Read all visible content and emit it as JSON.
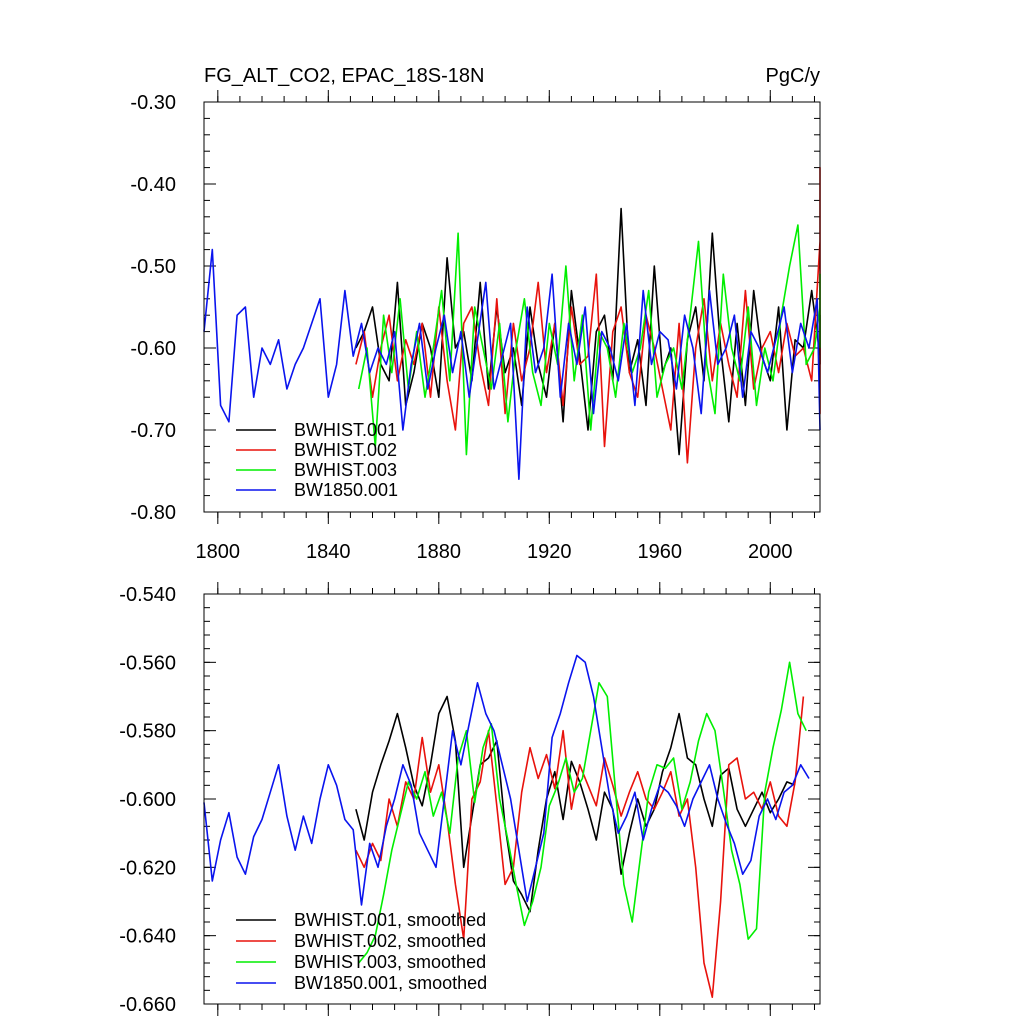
{
  "chart_data": [
    {
      "type": "line",
      "title_left": "FG_ALT_CO2, EPAC_18S-18N",
      "title_right": "PgC/y",
      "xlim": [
        1795,
        2018
      ],
      "ylim": [
        -0.8,
        -0.3
      ],
      "x_ticks": [
        1800,
        1840,
        1880,
        1920,
        1960,
        2000
      ],
      "x_tick_labels": [
        "1800",
        "1840",
        "1880",
        "1920",
        "1960",
        "2000"
      ],
      "y_ticks": [
        -0.3,
        -0.4,
        -0.5,
        -0.6,
        -0.7,
        -0.8
      ],
      "y_tick_labels": [
        "-0.30",
        "-0.40",
        "-0.50",
        "-0.60",
        "-0.70",
        "-0.80"
      ],
      "grid": false,
      "legend": "bottom-left",
      "series": [
        {
          "name": "BWHIST.001",
          "color": "#000000",
          "x_start": 1850,
          "x_step": 3,
          "values": [
            -0.6,
            -0.58,
            -0.55,
            -0.62,
            -0.64,
            -0.52,
            -0.67,
            -0.63,
            -0.57,
            -0.6,
            -0.66,
            -0.49,
            -0.6,
            -0.58,
            -0.64,
            -0.52,
            -0.65,
            -0.55,
            -0.63,
            -0.6,
            -0.67,
            -0.55,
            -0.62,
            -0.66,
            -0.57,
            -0.69,
            -0.53,
            -0.61,
            -0.7,
            -0.58,
            -0.56,
            -0.64,
            -0.43,
            -0.63,
            -0.59,
            -0.67,
            -0.5,
            -0.63,
            -0.6,
            -0.73,
            -0.59,
            -0.55,
            -0.64,
            -0.46,
            -0.6,
            -0.69,
            -0.57,
            -0.67,
            -0.53,
            -0.61,
            -0.64,
            -0.55,
            -0.7,
            -0.59,
            -0.6,
            -0.53,
            -0.61,
            -0.56,
            -0.62
          ]
        },
        {
          "name": "BWHIST.002",
          "color": "#e8120c",
          "x_start": 1850,
          "x_step": 3,
          "values": [
            -0.62,
            -0.58,
            -0.66,
            -0.6,
            -0.56,
            -0.64,
            -0.59,
            -0.62,
            -0.57,
            -0.66,
            -0.55,
            -0.64,
            -0.7,
            -0.57,
            -0.55,
            -0.62,
            -0.67,
            -0.54,
            -0.68,
            -0.57,
            -0.64,
            -0.6,
            -0.52,
            -0.63,
            -0.57,
            -0.67,
            -0.55,
            -0.62,
            -0.61,
            -0.51,
            -0.72,
            -0.58,
            -0.55,
            -0.63,
            -0.66,
            -0.56,
            -0.6,
            -0.65,
            -0.7,
            -0.57,
            -0.74,
            -0.6,
            -0.54,
            -0.64,
            -0.57,
            -0.62,
            -0.66,
            -0.53,
            -0.65,
            -0.6,
            -0.58,
            -0.63,
            -0.57,
            -0.61,
            -0.6,
            -0.64,
            -0.47,
            -0.68,
            -0.38,
            -0.62
          ]
        },
        {
          "name": "BWHIST.003",
          "color": "#00ee00",
          "x_start": 1851,
          "x_step": 3,
          "values": [
            -0.65,
            -0.6,
            -0.72,
            -0.56,
            -0.63,
            -0.54,
            -0.65,
            -0.58,
            -0.66,
            -0.6,
            -0.53,
            -0.64,
            -0.46,
            -0.73,
            -0.55,
            -0.6,
            -0.65,
            -0.57,
            -0.69,
            -0.6,
            -0.54,
            -0.63,
            -0.67,
            -0.57,
            -0.62,
            -0.5,
            -0.64,
            -0.56,
            -0.7,
            -0.58,
            -0.6,
            -0.66,
            -0.57,
            -0.63,
            -0.6,
            -0.53,
            -0.66,
            -0.62,
            -0.6,
            -0.65,
            -0.56,
            -0.47,
            -0.62,
            -0.68,
            -0.51,
            -0.6,
            -0.64,
            -0.55,
            -0.67,
            -0.6,
            -0.64,
            -0.56,
            -0.5,
            -0.45,
            -0.62,
            -0.6,
            -0.55,
            -0.51,
            -0.6
          ]
        },
        {
          "name": "BW1850.001",
          "color": "#0a14ee",
          "x_start": 1795,
          "x_step": 3,
          "values": [
            -0.58,
            -0.48,
            -0.67,
            -0.69,
            -0.56,
            -0.55,
            -0.66,
            -0.6,
            -0.62,
            -0.59,
            -0.65,
            -0.62,
            -0.6,
            -0.57,
            -0.54,
            -0.66,
            -0.62,
            -0.53,
            -0.61,
            -0.57,
            -0.63,
            -0.6,
            -0.62,
            -0.58,
            -0.7,
            -0.62,
            -0.57,
            -0.65,
            -0.6,
            -0.56,
            -0.63,
            -0.58,
            -0.66,
            -0.59,
            -0.52,
            -0.65,
            -0.61,
            -0.57,
            -0.76,
            -0.55,
            -0.63,
            -0.6,
            -0.51,
            -0.66,
            -0.57,
            -0.62,
            -0.55,
            -0.68,
            -0.58,
            -0.6,
            -0.64,
            -0.57,
            -0.67,
            -0.53,
            -0.62,
            -0.58,
            -0.59,
            -0.65,
            -0.56,
            -0.6,
            -0.68,
            -0.53,
            -0.62,
            -0.6,
            -0.56,
            -0.66,
            -0.58,
            -0.6,
            -0.63,
            -0.59,
            -0.55,
            -0.63,
            -0.57,
            -0.6,
            -0.54,
            -0.7
          ]
        }
      ]
    },
    {
      "type": "line",
      "xlim": [
        1795,
        2018
      ],
      "ylim": [
        -0.66,
        -0.54
      ],
      "x_ticks": [
        1800,
        1840,
        1880,
        1920,
        1960,
        2000
      ],
      "y_ticks": [
        -0.54,
        -0.56,
        -0.58,
        -0.6,
        -0.62,
        -0.64,
        -0.66
      ],
      "y_tick_labels": [
        "-0.540",
        "-0.560",
        "-0.580",
        "-0.600",
        "-0.620",
        "-0.640",
        "-0.660"
      ],
      "grid": false,
      "legend": "bottom-left",
      "series": [
        {
          "name": "BWHIST.001, smoothed",
          "color": "#000000",
          "x": [
            1850,
            1853,
            1856,
            1859,
            1862,
            1865,
            1868,
            1871,
            1874,
            1877,
            1880,
            1883,
            1886,
            1889,
            1892,
            1895,
            1898,
            1901,
            1904,
            1907,
            1910,
            1913,
            1916,
            1919,
            1922,
            1925,
            1928,
            1931,
            1934,
            1937,
            1940,
            1943,
            1946,
            1949,
            1952,
            1955,
            1958,
            1961,
            1964,
            1967,
            1970,
            1973,
            1976,
            1979,
            1982,
            1985,
            1988,
            1991,
            1994,
            1997,
            2000,
            2003,
            2006,
            2009
          ],
          "values": [
            -0.603,
            -0.612,
            -0.598,
            -0.59,
            -0.583,
            -0.575,
            -0.585,
            -0.596,
            -0.602,
            -0.59,
            -0.575,
            -0.57,
            -0.583,
            -0.62,
            -0.605,
            -0.59,
            -0.588,
            -0.583,
            -0.608,
            -0.624,
            -0.628,
            -0.633,
            -0.615,
            -0.6,
            -0.592,
            -0.606,
            -0.589,
            -0.595,
            -0.603,
            -0.612,
            -0.598,
            -0.603,
            -0.622,
            -0.61,
            -0.6,
            -0.608,
            -0.603,
            -0.592,
            -0.585,
            -0.575,
            -0.588,
            -0.59,
            -0.6,
            -0.608,
            -0.593,
            -0.591,
            -0.603,
            -0.608,
            -0.603,
            -0.598,
            -0.604,
            -0.6,
            -0.595,
            -0.596
          ]
        },
        {
          "name": "BWHIST.002, smoothed",
          "color": "#e8120c",
          "x": [
            1850,
            1853,
            1856,
            1859,
            1862,
            1865,
            1868,
            1871,
            1874,
            1877,
            1880,
            1883,
            1886,
            1889,
            1892,
            1895,
            1898,
            1901,
            1904,
            1907,
            1910,
            1913,
            1916,
            1919,
            1922,
            1925,
            1928,
            1931,
            1934,
            1937,
            1940,
            1943,
            1946,
            1949,
            1952,
            1955,
            1958,
            1961,
            1964,
            1967,
            1970,
            1973,
            1976,
            1979,
            1982,
            1985,
            1988,
            1991,
            1994,
            1997,
            2000,
            2003,
            2006,
            2009,
            2012
          ],
          "values": [
            -0.615,
            -0.62,
            -0.613,
            -0.618,
            -0.6,
            -0.608,
            -0.595,
            -0.6,
            -0.582,
            -0.598,
            -0.59,
            -0.606,
            -0.625,
            -0.641,
            -0.6,
            -0.595,
            -0.58,
            -0.602,
            -0.625,
            -0.62,
            -0.598,
            -0.585,
            -0.594,
            -0.587,
            -0.597,
            -0.58,
            -0.603,
            -0.59,
            -0.596,
            -0.602,
            -0.588,
            -0.596,
            -0.605,
            -0.598,
            -0.592,
            -0.6,
            -0.603,
            -0.598,
            -0.592,
            -0.605,
            -0.6,
            -0.62,
            -0.648,
            -0.658,
            -0.63,
            -0.59,
            -0.588,
            -0.6,
            -0.598,
            -0.603,
            -0.595,
            -0.605,
            -0.608,
            -0.595,
            -0.57
          ]
        },
        {
          "name": "BWHIST.003, smoothed",
          "color": "#00ee00",
          "x": [
            1851,
            1854,
            1857,
            1860,
            1863,
            1866,
            1869,
            1872,
            1875,
            1878,
            1881,
            1884,
            1887,
            1890,
            1893,
            1896,
            1899,
            1902,
            1905,
            1908,
            1911,
            1914,
            1917,
            1920,
            1923,
            1926,
            1929,
            1932,
            1935,
            1938,
            1941,
            1944,
            1947,
            1950,
            1953,
            1956,
            1959,
            1962,
            1965,
            1968,
            1971,
            1974,
            1977,
            1980,
            1983,
            1986,
            1989,
            1992,
            1995,
            1998,
            2001,
            2004,
            2007,
            2010,
            2013
          ],
          "values": [
            -0.648,
            -0.645,
            -0.64,
            -0.628,
            -0.615,
            -0.605,
            -0.595,
            -0.6,
            -0.592,
            -0.605,
            -0.598,
            -0.61,
            -0.588,
            -0.58,
            -0.601,
            -0.585,
            -0.578,
            -0.6,
            -0.612,
            -0.625,
            -0.637,
            -0.63,
            -0.62,
            -0.602,
            -0.596,
            -0.588,
            -0.598,
            -0.594,
            -0.58,
            -0.566,
            -0.57,
            -0.598,
            -0.625,
            -0.636,
            -0.617,
            -0.598,
            -0.59,
            -0.591,
            -0.588,
            -0.603,
            -0.595,
            -0.583,
            -0.575,
            -0.58,
            -0.597,
            -0.615,
            -0.625,
            -0.641,
            -0.638,
            -0.598,
            -0.585,
            -0.574,
            -0.56,
            -0.575,
            -0.58
          ]
        },
        {
          "name": "BW1850.001, smoothed",
          "color": "#0a14ee",
          "x": [
            1795,
            1798,
            1801,
            1804,
            1807,
            1810,
            1813,
            1816,
            1819,
            1822,
            1825,
            1828,
            1831,
            1834,
            1837,
            1840,
            1843,
            1846,
            1849,
            1852,
            1855,
            1858,
            1861,
            1864,
            1867,
            1870,
            1873,
            1876,
            1879,
            1882,
            1885,
            1888,
            1891,
            1894,
            1897,
            1900,
            1903,
            1906,
            1909,
            1912,
            1915,
            1918,
            1921,
            1924,
            1927,
            1930,
            1933,
            1936,
            1939,
            1942,
            1945,
            1948,
            1951,
            1954,
            1957,
            1960,
            1963,
            1966,
            1969,
            1972,
            1975,
            1978,
            1981,
            1984,
            1987,
            1990,
            1993,
            1996,
            1999,
            2002,
            2005,
            2008,
            2011,
            2014
          ],
          "values": [
            -0.601,
            -0.624,
            -0.612,
            -0.604,
            -0.617,
            -0.622,
            -0.611,
            -0.606,
            -0.598,
            -0.59,
            -0.605,
            -0.615,
            -0.605,
            -0.613,
            -0.6,
            -0.59,
            -0.596,
            -0.606,
            -0.609,
            -0.631,
            -0.613,
            -0.62,
            -0.608,
            -0.6,
            -0.59,
            -0.596,
            -0.61,
            -0.615,
            -0.62,
            -0.6,
            -0.58,
            -0.59,
            -0.578,
            -0.566,
            -0.575,
            -0.58,
            -0.59,
            -0.6,
            -0.615,
            -0.63,
            -0.62,
            -0.61,
            -0.582,
            -0.575,
            -0.566,
            -0.558,
            -0.56,
            -0.57,
            -0.585,
            -0.6,
            -0.61,
            -0.605,
            -0.598,
            -0.612,
            -0.603,
            -0.596,
            -0.598,
            -0.602,
            -0.608,
            -0.6,
            -0.595,
            -0.59,
            -0.6,
            -0.607,
            -0.613,
            -0.622,
            -0.618,
            -0.605,
            -0.6,
            -0.606,
            -0.598,
            -0.596,
            -0.59,
            -0.594
          ]
        }
      ]
    }
  ]
}
